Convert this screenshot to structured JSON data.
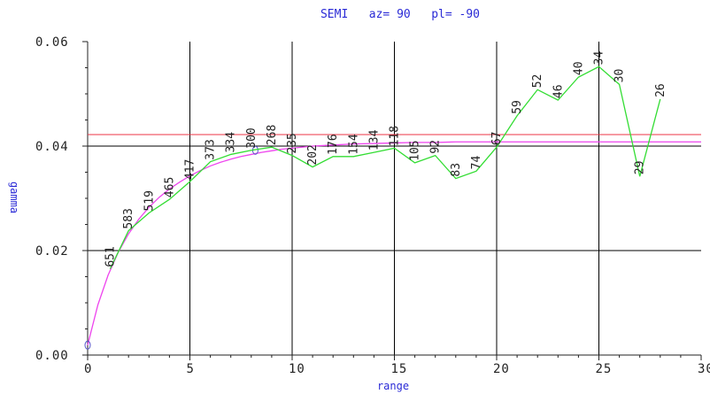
{
  "colors": {
    "title": "#2a2ad6",
    "axes": "#222222",
    "experimental": "#33dd33",
    "model": "#ee44ee",
    "sill": "#ee3344",
    "grid": "#000000"
  },
  "chart_data": {
    "type": "line",
    "title": "SEMI   az= 90   pl= -90",
    "xlabel": "range",
    "ylabel": "gamma",
    "xlim": [
      0,
      30
    ],
    "ylim": [
      0,
      0.06
    ],
    "x_ticks": [
      0,
      5,
      10,
      15,
      20,
      25,
      30
    ],
    "x_tick_labels": [
      "0",
      "5",
      "10",
      "15",
      "20",
      "25",
      "30"
    ],
    "y_ticks": [
      0,
      0.02,
      0.04,
      0.06
    ],
    "y_tick_labels": [
      "0.00",
      "0.02",
      "0.04",
      "0.06"
    ],
    "grid": true,
    "series": [
      {
        "kind": "experimental",
        "x": [
          1.1,
          2.0,
          3.0,
          4.0,
          5.0,
          6.0,
          7.0,
          8.0,
          9.0,
          10.0,
          11.0,
          12.0,
          13.0,
          14.0,
          15.0,
          16.0,
          17.0,
          18.0,
          19.0,
          20.0,
          21.0,
          22.0,
          23.0,
          24.0,
          25.0,
          26.0,
          27.0,
          28.0
        ],
        "y": [
          0.0165,
          0.0238,
          0.0272,
          0.0298,
          0.0332,
          0.037,
          0.0384,
          0.0392,
          0.0398,
          0.0382,
          0.036,
          0.038,
          0.038,
          0.0388,
          0.0396,
          0.0368,
          0.0382,
          0.0338,
          0.0352,
          0.0398,
          0.0458,
          0.0508,
          0.0488,
          0.0532,
          0.0552,
          0.0518,
          0.0342,
          0.049
        ],
        "pairs": [
          "651",
          "583",
          "519",
          "465",
          "417",
          "373",
          "334",
          "300",
          "268",
          "235",
          "202",
          "176",
          "154",
          "134",
          "118",
          "105",
          "92",
          "83",
          "74",
          "67",
          "59",
          "52",
          "46",
          "40",
          "34",
          "30",
          "29",
          "26"
        ]
      },
      {
        "kind": "model",
        "x": [
          0,
          0.5,
          1,
          1.5,
          2,
          2.5,
          3,
          3.5,
          4,
          4.5,
          5,
          5.5,
          6,
          6.5,
          7,
          7.5,
          8,
          8.5,
          9,
          9.5,
          10,
          11,
          12,
          13,
          14,
          15,
          16,
          17,
          18,
          19,
          20,
          21,
          22,
          23,
          24,
          25,
          26,
          27,
          28,
          29,
          30
        ],
        "y": [
          0.0019,
          0.0096,
          0.0153,
          0.0197,
          0.0232,
          0.026,
          0.0283,
          0.0302,
          0.0318,
          0.0331,
          0.0343,
          0.0353,
          0.0362,
          0.0369,
          0.0375,
          0.038,
          0.0384,
          0.0388,
          0.0391,
          0.0394,
          0.0396,
          0.04,
          0.0402,
          0.0404,
          0.0405,
          0.0406,
          0.0407,
          0.0407,
          0.0408,
          0.0408,
          0.0408,
          0.0408,
          0.0408,
          0.0408,
          0.0408,
          0.0408,
          0.0408,
          0.0408,
          0.0408,
          0.0408,
          0.0408
        ],
        "markers": [
          [
            0,
            0.0019
          ],
          [
            8.2,
            0.0392
          ]
        ]
      }
    ],
    "reference_lines": [
      {
        "kind": "sill",
        "y": 0.0422
      }
    ]
  }
}
